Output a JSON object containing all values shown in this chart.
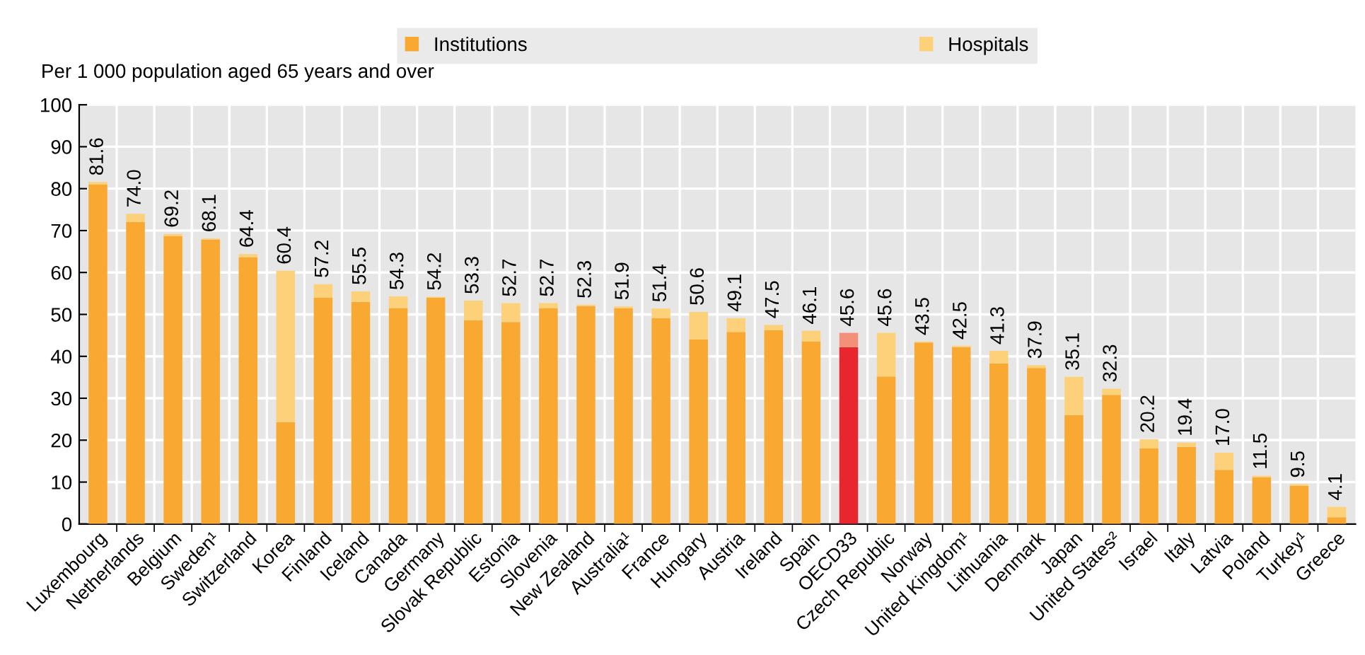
{
  "chart_data": {
    "type": "bar",
    "stacked": true,
    "ylabel": "Per 1 000 population aged 65 years and over",
    "categories": [
      "Luxembourg",
      "Netherlands",
      "Belgium",
      "Sweden¹",
      "Switzerland",
      "Korea",
      "Finland",
      "Iceland",
      "Canada",
      "Germany",
      "Slovak Republic",
      "Estonia",
      "Slovenia",
      "New Zealand",
      "Australia¹",
      "France",
      "Hungary",
      "Austria",
      "Ireland",
      "Spain",
      "OECD33",
      "Czech Republic",
      "Norway",
      "United Kingdom¹",
      "Lithuania",
      "Denmark",
      "Japan",
      "United States²",
      "Israel",
      "Italy",
      "Latvia",
      "Poland",
      "Turkey¹",
      "Greece"
    ],
    "series": [
      {
        "name": "Institutions",
        "color": "#f9a932",
        "colors": [
          "#f9a932",
          "#f9a932",
          "#f9a932",
          "#f9a932",
          "#f9a932",
          "#f9a932",
          "#f9a932",
          "#f9a932",
          "#f9a932",
          "#f9a932",
          "#f9a932",
          "#f9a932",
          "#f9a932",
          "#f9a932",
          "#f9a932",
          "#f9a932",
          "#f9a932",
          "#f9a932",
          "#f9a932",
          "#f9a932",
          "#e8262e",
          "#f9a932",
          "#f9a932",
          "#f9a932",
          "#f9a932",
          "#f9a932",
          "#f9a932",
          "#f9a932",
          "#f9a932",
          "#f9a932",
          "#f9a932",
          "#f9a932",
          "#f9a932",
          "#f9a932"
        ],
        "values": [
          81.0,
          72.0,
          68.7,
          67.9,
          63.6,
          24.3,
          54.0,
          53.0,
          51.5,
          54.0,
          48.6,
          48.2,
          51.5,
          52.0,
          51.5,
          49.1,
          44.0,
          45.8,
          46.2,
          43.6,
          42.2,
          35.2,
          43.3,
          42.2,
          38.3,
          37.2,
          26.0,
          30.8,
          18.0,
          18.4,
          12.9,
          11.1,
          9.1,
          1.6
        ]
      },
      {
        "name": "Hospitals",
        "color": "#fdd17a",
        "colors": [
          "#fdd17a",
          "#fdd17a",
          "#fdd17a",
          "#fdd17a",
          "#fdd17a",
          "#fdd17a",
          "#fdd17a",
          "#fdd17a",
          "#fdd17a",
          "#fdd17a",
          "#fdd17a",
          "#fdd17a",
          "#fdd17a",
          "#fdd17a",
          "#fdd17a",
          "#fdd17a",
          "#fdd17a",
          "#fdd17a",
          "#fdd17a",
          "#fdd17a",
          "#f4907a",
          "#fdd17a",
          "#fdd17a",
          "#fdd17a",
          "#fdd17a",
          "#fdd17a",
          "#fdd17a",
          "#fdd17a",
          "#fdd17a",
          "#fdd17a",
          "#fdd17a",
          "#fdd17a",
          "#fdd17a",
          "#fdd17a"
        ],
        "values": [
          0.6,
          2.0,
          0.5,
          0.2,
          0.8,
          36.1,
          3.2,
          2.5,
          2.8,
          0.2,
          4.7,
          4.5,
          1.2,
          0.3,
          0.4,
          2.3,
          6.6,
          3.3,
          1.3,
          2.5,
          3.4,
          10.4,
          0.2,
          0.3,
          3.0,
          0.7,
          9.1,
          1.5,
          2.2,
          1.0,
          4.1,
          0.4,
          0.4,
          2.5
        ]
      }
    ],
    "totals": [
      "81.6",
      "74.0",
      "69.2",
      "68.1",
      "64.4",
      "60.4",
      "57.2",
      "55.5",
      "54.3",
      "54.2",
      "53.3",
      "52.7",
      "52.7",
      "52.3",
      "51.9",
      "51.4",
      "50.6",
      "49.1",
      "47.5",
      "46.1",
      "45.6",
      "45.6",
      "43.5",
      "42.5",
      "41.3",
      "37.9",
      "35.1",
      "32.3",
      "20.2",
      "19.4",
      "17.0",
      "11.5",
      "9.5",
      "4.1"
    ],
    "ylim": [
      0,
      100
    ],
    "yticks": [
      0,
      10,
      20,
      30,
      40,
      50,
      60,
      70,
      80,
      90,
      100
    ],
    "grid": true,
    "legend": "top"
  }
}
